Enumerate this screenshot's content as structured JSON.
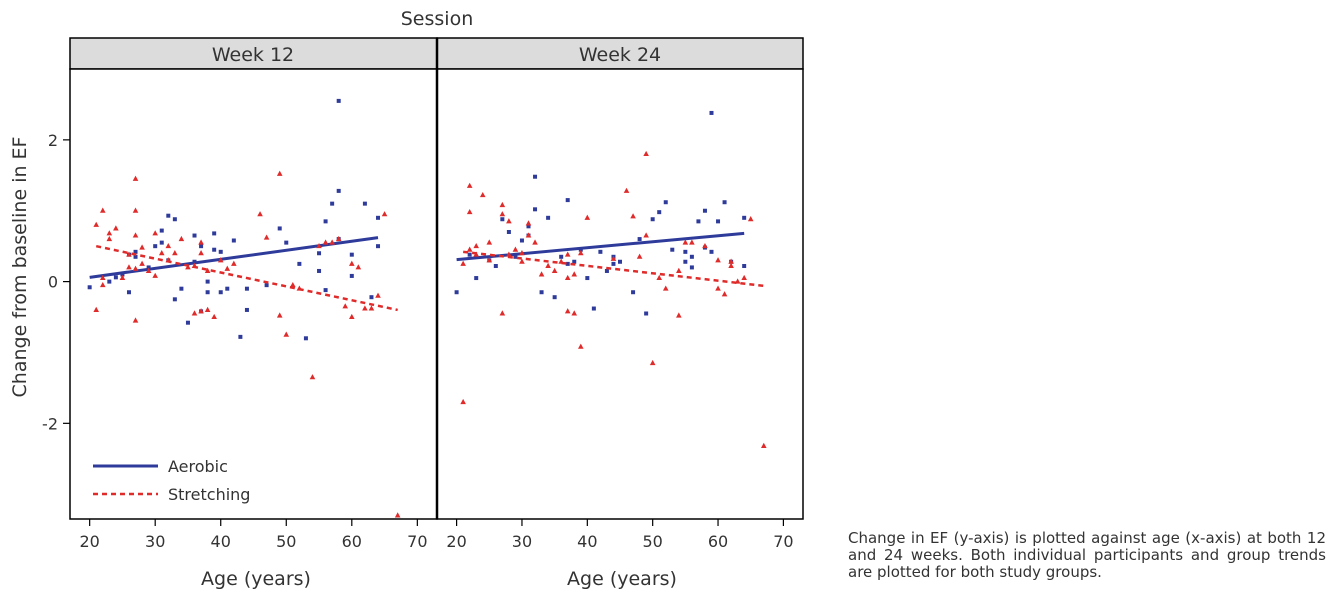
{
  "chart_data": {
    "type": "scatter",
    "title": "Session",
    "xlabel": "Age (years)",
    "ylabel": "Change from baseline in EF",
    "xlim": [
      17,
      73
    ],
    "ylim": [
      -3.35,
      3.0
    ],
    "xticks": [
      20,
      30,
      40,
      50,
      60,
      70
    ],
    "yticks": [
      -2,
      0,
      2
    ],
    "legend_placement": "bottom-left",
    "colors": {
      "Aerobic": "#2e3b9a",
      "Stretching": "#e02b2b"
    },
    "legend": [
      {
        "name": "Aerobic",
        "style": "solid"
      },
      {
        "name": "Stretching",
        "style": "dashed"
      }
    ],
    "panels": [
      {
        "label": "Week 12",
        "series": [
          {
            "name": "Aerobic",
            "marker": "square",
            "trend": {
              "x": [
                20,
                64
              ],
              "y": [
                0.06,
                0.62
              ]
            },
            "points": [
              [
                20,
                -0.08
              ],
              [
                23,
                0.0
              ],
              [
                24,
                0.06
              ],
              [
                25,
                0.1
              ],
              [
                26,
                -0.15
              ],
              [
                26,
                0.38
              ],
              [
                27,
                0.42
              ],
              [
                27,
                0.35
              ],
              [
                29,
                0.2
              ],
              [
                30,
                0.5
              ],
              [
                31,
                0.72
              ],
              [
                31,
                0.55
              ],
              [
                32,
                0.93
              ],
              [
                32,
                0.3
              ],
              [
                33,
                -0.25
              ],
              [
                33,
                0.88
              ],
              [
                34,
                -0.1
              ],
              [
                35,
                -0.58
              ],
              [
                36,
                0.65
              ],
              [
                36,
                0.28
              ],
              [
                37,
                -0.42
              ],
              [
                37,
                0.5
              ],
              [
                38,
                0.0
              ],
              [
                38,
                -0.15
              ],
              [
                39,
                0.68
              ],
              [
                39,
                0.45
              ],
              [
                40,
                -0.15
              ],
              [
                40,
                0.42
              ],
              [
                41,
                -0.1
              ],
              [
                42,
                0.58
              ],
              [
                43,
                -0.78
              ],
              [
                44,
                -0.4
              ],
              [
                44,
                -0.1
              ],
              [
                47,
                -0.05
              ],
              [
                49,
                0.75
              ],
              [
                50,
                0.55
              ],
              [
                52,
                0.25
              ],
              [
                53,
                -0.8
              ],
              [
                55,
                0.4
              ],
              [
                55,
                0.15
              ],
              [
                56,
                0.85
              ],
              [
                56,
                -0.12
              ],
              [
                57,
                1.1
              ],
              [
                58,
                2.55
              ],
              [
                58,
                1.28
              ],
              [
                58,
                0.6
              ],
              [
                60,
                0.38
              ],
              [
                60,
                0.08
              ],
              [
                62,
                1.1
              ],
              [
                63,
                -0.22
              ],
              [
                64,
                0.5
              ],
              [
                64,
                0.9
              ]
            ]
          },
          {
            "name": "Stretching",
            "marker": "triangle",
            "trend": {
              "x": [
                21,
                67
              ],
              "y": [
                0.5,
                -0.4
              ]
            },
            "points": [
              [
                21,
                0.8
              ],
              [
                21,
                -0.4
              ],
              [
                22,
                1.0
              ],
              [
                22,
                -0.05
              ],
              [
                22,
                0.05
              ],
              [
                23,
                0.68
              ],
              [
                23,
                0.6
              ],
              [
                24,
                0.75
              ],
              [
                25,
                0.05
              ],
              [
                26,
                0.2
              ],
              [
                26,
                0.38
              ],
              [
                27,
                1.45
              ],
              [
                27,
                1.0
              ],
              [
                27,
                0.65
              ],
              [
                27,
                -0.55
              ],
              [
                27,
                0.18
              ],
              [
                28,
                0.25
              ],
              [
                28,
                0.48
              ],
              [
                29,
                0.15
              ],
              [
                30,
                0.68
              ],
              [
                30,
                0.08
              ],
              [
                31,
                0.4
              ],
              [
                32,
                0.5
              ],
              [
                32,
                0.3
              ],
              [
                33,
                0.4
              ],
              [
                34,
                0.6
              ],
              [
                35,
                0.2
              ],
              [
                36,
                0.22
              ],
              [
                36,
                -0.45
              ],
              [
                37,
                0.4
              ],
              [
                37,
                0.55
              ],
              [
                37,
                -0.42
              ],
              [
                38,
                0.15
              ],
              [
                38,
                -0.4
              ],
              [
                39,
                -0.5
              ],
              [
                40,
                0.3
              ],
              [
                41,
                0.18
              ],
              [
                42,
                0.25
              ],
              [
                46,
                0.95
              ],
              [
                47,
                0.62
              ],
              [
                49,
                1.52
              ],
              [
                49,
                -0.48
              ],
              [
                50,
                -0.75
              ],
              [
                51,
                -0.05
              ],
              [
                52,
                -0.1
              ],
              [
                54,
                -1.35
              ],
              [
                55,
                0.5
              ],
              [
                56,
                0.55
              ],
              [
                57,
                0.55
              ],
              [
                58,
                0.6
              ],
              [
                59,
                -0.35
              ],
              [
                60,
                -0.5
              ],
              [
                60,
                0.25
              ],
              [
                61,
                0.2
              ],
              [
                62,
                -0.38
              ],
              [
                63,
                -0.38
              ],
              [
                64,
                -0.2
              ],
              [
                65,
                0.95
              ],
              [
                67,
                -3.3
              ]
            ]
          }
        ]
      },
      {
        "label": "Week 24",
        "series": [
          {
            "name": "Aerobic",
            "marker": "square",
            "trend": {
              "x": [
                20,
                64
              ],
              "y": [
                0.31,
                0.68
              ]
            },
            "points": [
              [
                20,
                -0.15
              ],
              [
                22,
                0.38
              ],
              [
                23,
                0.05
              ],
              [
                25,
                0.3
              ],
              [
                26,
                0.22
              ],
              [
                27,
                0.88
              ],
              [
                28,
                0.7
              ],
              [
                29,
                0.35
              ],
              [
                30,
                0.58
              ],
              [
                31,
                0.65
              ],
              [
                31,
                0.78
              ],
              [
                32,
                1.48
              ],
              [
                32,
                1.02
              ],
              [
                33,
                -0.15
              ],
              [
                34,
                0.9
              ],
              [
                35,
                -0.22
              ],
              [
                36,
                0.35
              ],
              [
                37,
                1.15
              ],
              [
                37,
                0.25
              ],
              [
                38,
                0.28
              ],
              [
                39,
                0.45
              ],
              [
                40,
                0.05
              ],
              [
                41,
                -0.38
              ],
              [
                42,
                0.42
              ],
              [
                43,
                0.15
              ],
              [
                44,
                0.25
              ],
              [
                44,
                0.35
              ],
              [
                45,
                0.28
              ],
              [
                47,
                -0.15
              ],
              [
                48,
                0.6
              ],
              [
                49,
                -0.45
              ],
              [
                50,
                0.88
              ],
              [
                51,
                0.98
              ],
              [
                52,
                1.12
              ],
              [
                53,
                0.45
              ],
              [
                55,
                0.42
              ],
              [
                55,
                0.28
              ],
              [
                56,
                0.2
              ],
              [
                56,
                0.35
              ],
              [
                57,
                0.85
              ],
              [
                58,
                1.0
              ],
              [
                58,
                0.48
              ],
              [
                59,
                2.38
              ],
              [
                59,
                0.42
              ],
              [
                60,
                0.85
              ],
              [
                61,
                1.12
              ],
              [
                62,
                0.28
              ],
              [
                64,
                0.22
              ],
              [
                64,
                0.9
              ]
            ]
          },
          {
            "name": "Stretching",
            "marker": "triangle",
            "trend": {
              "x": [
                21,
                67
              ],
              "y": [
                0.42,
                -0.06
              ]
            },
            "points": [
              [
                21,
                -1.7
              ],
              [
                21,
                0.25
              ],
              [
                22,
                1.35
              ],
              [
                22,
                0.45
              ],
              [
                22,
                0.98
              ],
              [
                23,
                0.5
              ],
              [
                23,
                0.38
              ],
              [
                24,
                1.22
              ],
              [
                25,
                0.55
              ],
              [
                25,
                0.3
              ],
              [
                27,
                1.08
              ],
              [
                27,
                0.95
              ],
              [
                27,
                -0.45
              ],
              [
                28,
                0.85
              ],
              [
                28,
                0.38
              ],
              [
                29,
                0.45
              ],
              [
                30,
                0.4
              ],
              [
                30,
                0.28
              ],
              [
                31,
                0.82
              ],
              [
                31,
                0.65
              ],
              [
                32,
                0.55
              ],
              [
                33,
                0.1
              ],
              [
                34,
                0.22
              ],
              [
                35,
                0.15
              ],
              [
                36,
                0.28
              ],
              [
                37,
                0.38
              ],
              [
                37,
                0.05
              ],
              [
                37,
                -0.42
              ],
              [
                38,
                0.1
              ],
              [
                38,
                -0.45
              ],
              [
                39,
                -0.92
              ],
              [
                39,
                0.4
              ],
              [
                40,
                0.9
              ],
              [
                44,
                0.32
              ],
              [
                46,
                1.28
              ],
              [
                47,
                0.92
              ],
              [
                48,
                0.35
              ],
              [
                49,
                1.8
              ],
              [
                49,
                0.65
              ],
              [
                50,
                -1.15
              ],
              [
                51,
                0.05
              ],
              [
                52,
                -0.1
              ],
              [
                54,
                0.15
              ],
              [
                54,
                -0.48
              ],
              [
                55,
                0.55
              ],
              [
                56,
                0.55
              ],
              [
                58,
                0.5
              ],
              [
                60,
                0.3
              ],
              [
                60,
                -0.1
              ],
              [
                61,
                -0.18
              ],
              [
                62,
                0.28
              ],
              [
                62,
                0.22
              ],
              [
                63,
                0.0
              ],
              [
                64,
                0.05
              ],
              [
                65,
                0.88
              ],
              [
                67,
                -2.32
              ]
            ]
          }
        ]
      }
    ]
  },
  "caption": "Change in EF (y-axis) is plotted against age (x-axis) at both 12 and 24 weeks. Both individual participants and group trends are plotted for both study groups."
}
